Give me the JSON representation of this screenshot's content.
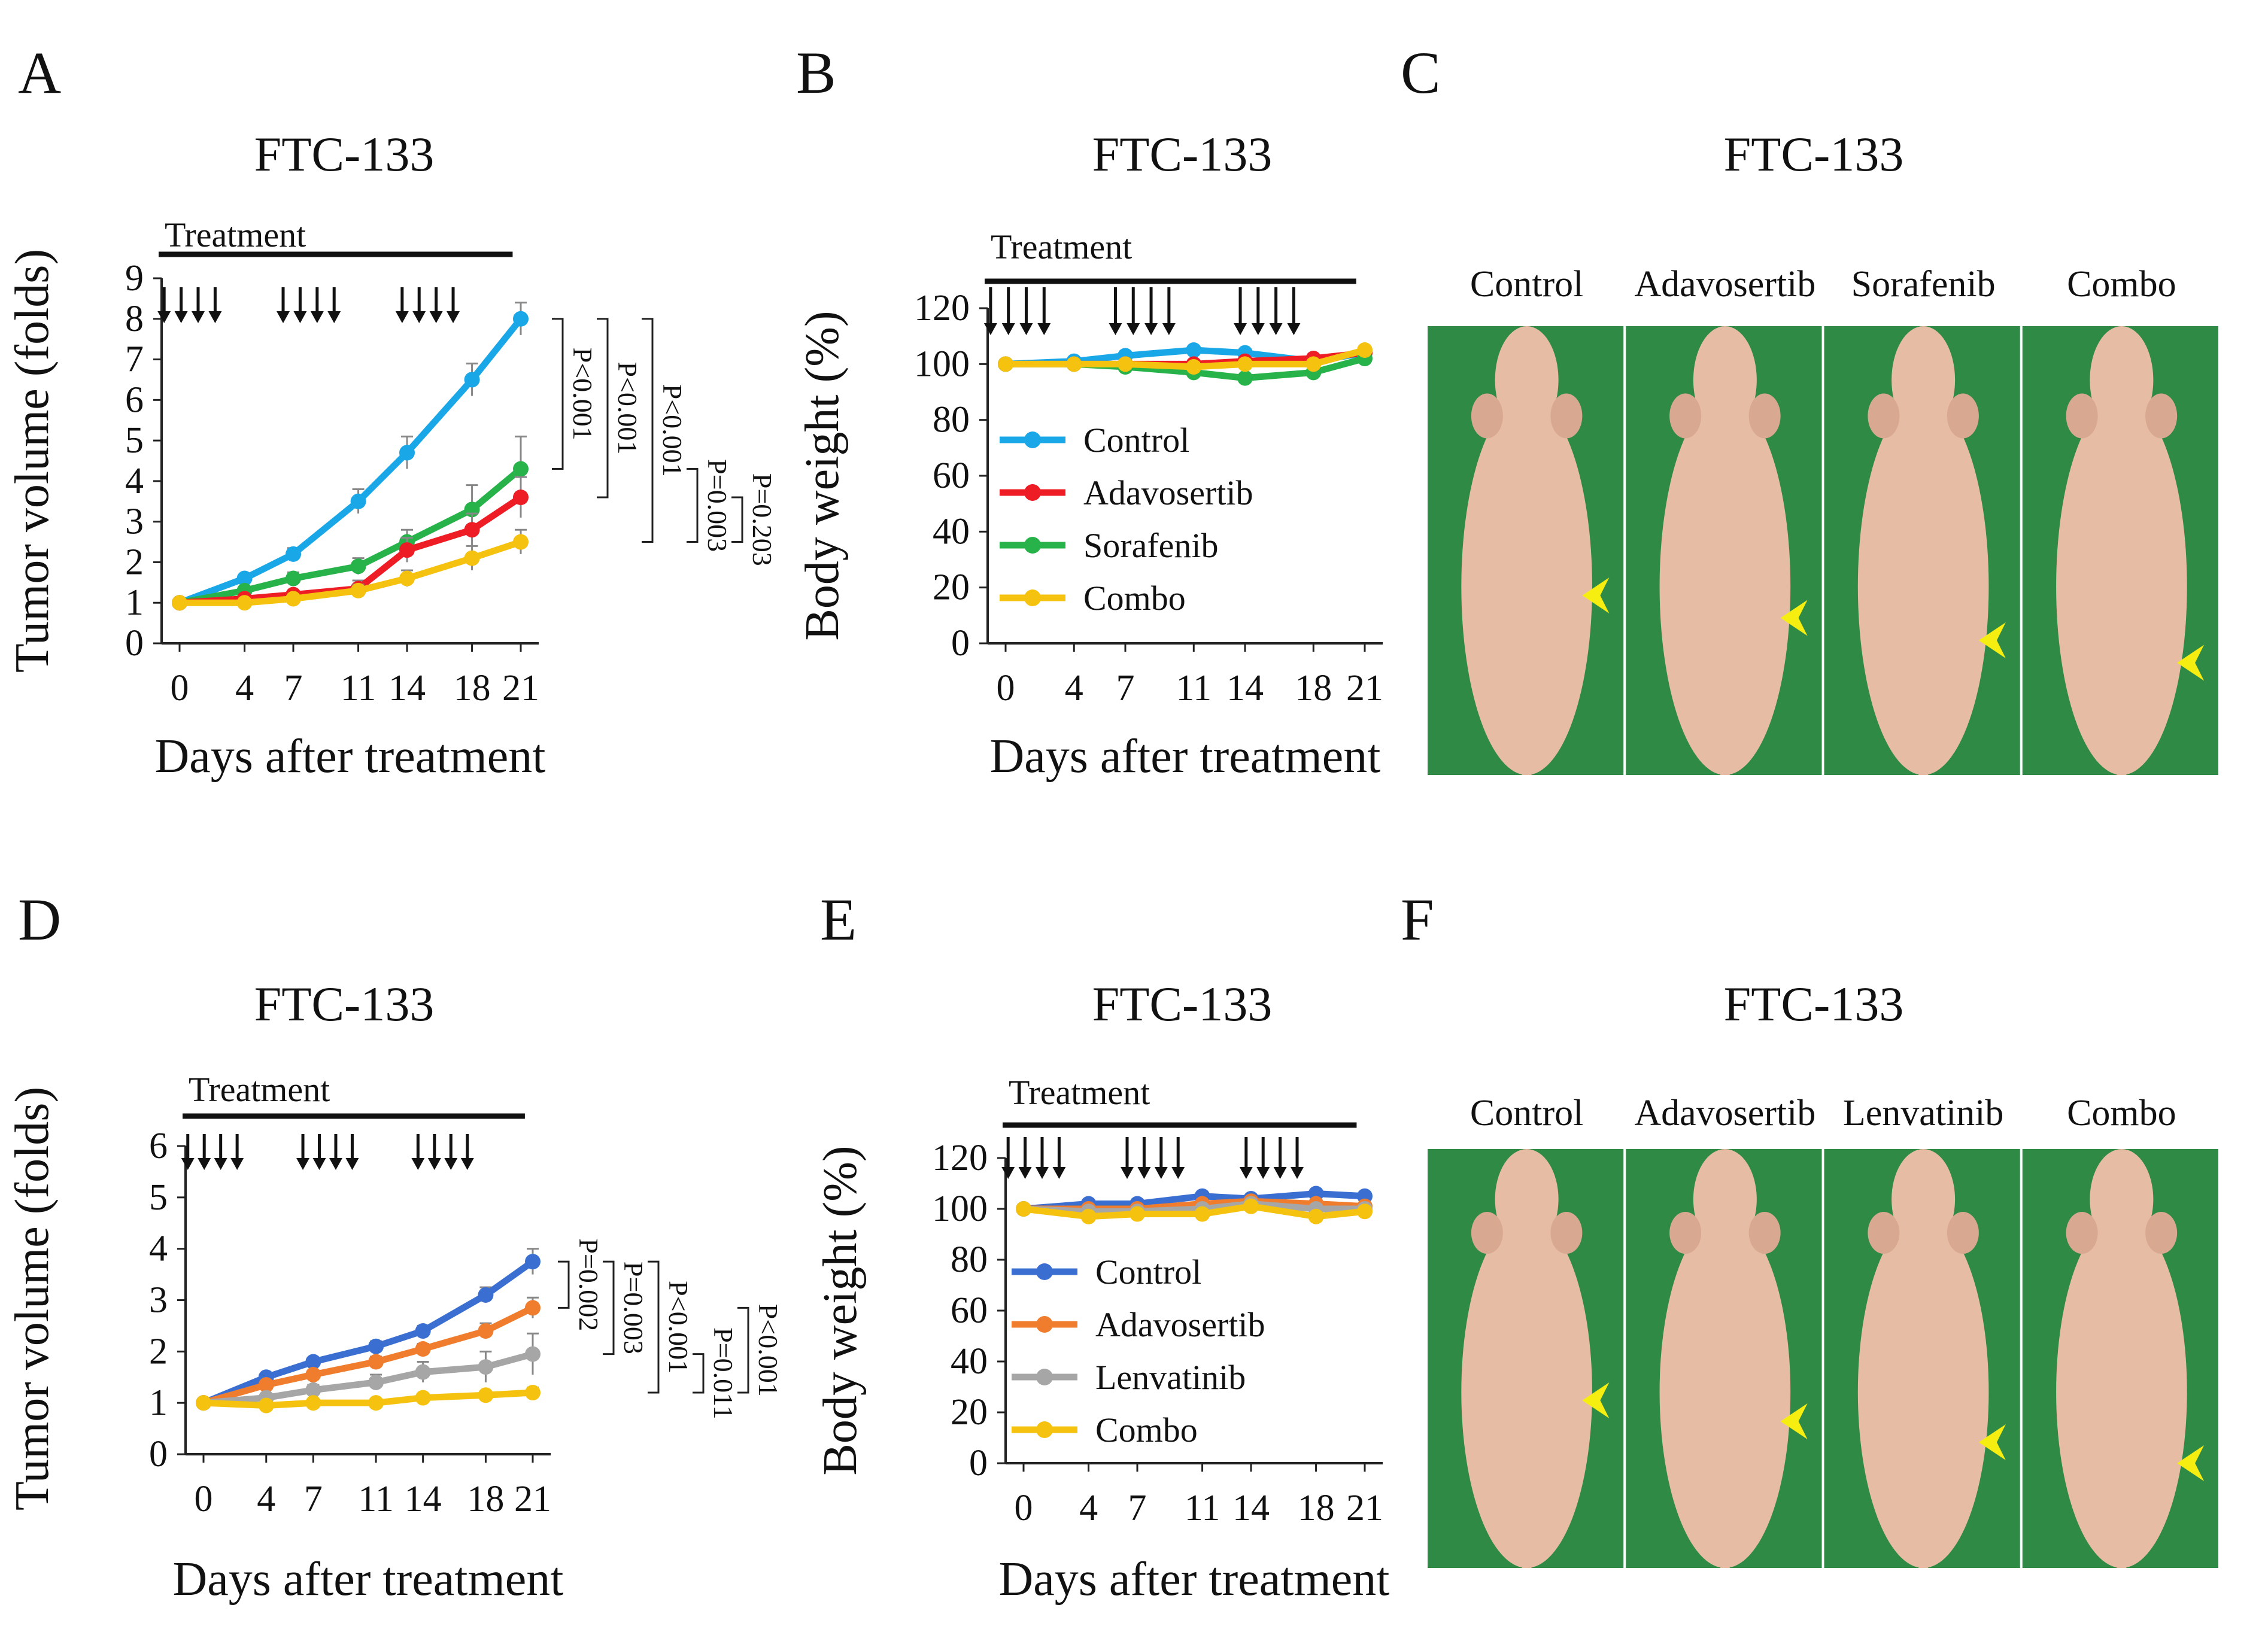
{
  "figure": {
    "panels": {
      "A": {
        "letter": "A",
        "title": "FTC-133"
      },
      "B": {
        "letter": "B",
        "title": "FTC-133"
      },
      "C": {
        "letter": "C",
        "title": "FTC-133"
      },
      "D": {
        "letter": "D",
        "title": "FTC-133"
      },
      "E": {
        "letter": "E",
        "title": "FTC-133"
      },
      "F": {
        "letter": "F",
        "title": "FTC-133"
      }
    },
    "treatment_label": "Treatment",
    "xlabel": "Days after treatment",
    "photo_C": {
      "labels": [
        "Control",
        "Adavosertib",
        "Sorafenib",
        "Combo"
      ]
    },
    "photo_F": {
      "labels": [
        "Control",
        "Adavosertib",
        "Lenvatinib",
        "Combo"
      ]
    },
    "colors": {
      "photo_bg": "#2f8a45",
      "skin": "#e6bca4",
      "arrowhead": "#f5ee10"
    }
  },
  "chart_data": [
    {
      "id": "A",
      "type": "line",
      "title": "FTC-133",
      "xlabel": "Days after treatment",
      "ylabel": "Tumor volume (folds)",
      "x": [
        0,
        4,
        7,
        11,
        14,
        18,
        21
      ],
      "xticks": [
        "0",
        "4",
        "7",
        "11",
        "14",
        "18",
        "21"
      ],
      "ylim": [
        0,
        9
      ],
      "yticks": [
        "0",
        "1",
        "2",
        "3",
        "4",
        "5",
        "6",
        "7",
        "8",
        "9"
      ],
      "treatment_days": [
        [
          0,
          1,
          2,
          3
        ],
        [
          7,
          8,
          9,
          10
        ],
        [
          14,
          15,
          16,
          17
        ]
      ],
      "series": [
        {
          "name": "Control",
          "color": "#1aa7e8",
          "values": [
            1.0,
            1.6,
            2.2,
            3.5,
            4.7,
            6.5,
            8.0
          ],
          "err": [
            0.05,
            0.1,
            0.15,
            0.3,
            0.4,
            0.4,
            0.4
          ]
        },
        {
          "name": "Sorafenib",
          "color": "#27b24a",
          "values": [
            1.0,
            1.3,
            1.6,
            1.9,
            2.5,
            3.3,
            4.3
          ],
          "err": [
            0.05,
            0.1,
            0.15,
            0.2,
            0.3,
            0.6,
            0.8
          ]
        },
        {
          "name": "Adavosertib",
          "color": "#ee1c24",
          "values": [
            1.0,
            1.1,
            1.2,
            1.35,
            2.3,
            2.8,
            3.6
          ],
          "err": [
            0.05,
            0.1,
            0.1,
            0.2,
            0.3,
            0.4,
            0.5
          ]
        },
        {
          "name": "Combo",
          "color": "#f5c20f",
          "values": [
            1.0,
            1.0,
            1.1,
            1.3,
            1.6,
            2.1,
            2.5
          ],
          "err": [
            0.05,
            0.1,
            0.1,
            0.15,
            0.2,
            0.3,
            0.3
          ]
        }
      ],
      "pvalues": [
        {
          "label": "P<0.001",
          "from": 8.0,
          "to": 4.3
        },
        {
          "label": "P<0.001",
          "from": 8.0,
          "to": 3.6
        },
        {
          "label": "P<0.001",
          "from": 8.0,
          "to": 2.5
        },
        {
          "label": "P=0.003",
          "from": 4.3,
          "to": 2.5
        },
        {
          "label": "P=0.203",
          "from": 3.6,
          "to": 2.5
        }
      ]
    },
    {
      "id": "B",
      "type": "line",
      "title": "FTC-133",
      "xlabel": "Days after treatment",
      "ylabel": "Body weight (%)",
      "x": [
        0,
        4,
        7,
        11,
        14,
        18,
        21
      ],
      "xticks": [
        "0",
        "4",
        "7",
        "11",
        "14",
        "18",
        "21"
      ],
      "ylim": [
        0,
        120
      ],
      "yticks": [
        "0",
        "20",
        "40",
        "60",
        "80",
        "100",
        "120"
      ],
      "treatment_days": [
        [
          0,
          1,
          2,
          3
        ],
        [
          7,
          8,
          9,
          10
        ],
        [
          14,
          15,
          16,
          17
        ]
      ],
      "legend": "left",
      "series": [
        {
          "name": "Control",
          "color": "#1aa7e8",
          "values": [
            100,
            101,
            103,
            105,
            104,
            101,
            104
          ]
        },
        {
          "name": "Adavosertib",
          "color": "#ee1c24",
          "values": [
            100,
            100,
            100,
            100,
            101,
            102,
            104
          ]
        },
        {
          "name": "Sorafenib",
          "color": "#27b24a",
          "values": [
            100,
            100,
            99,
            97,
            95,
            97,
            102
          ]
        },
        {
          "name": "Combo",
          "color": "#f5c20f",
          "values": [
            100,
            100,
            100,
            99,
            100,
            100,
            105
          ]
        }
      ]
    },
    {
      "id": "D",
      "type": "line",
      "title": "FTC-133",
      "xlabel": "Days after treatment",
      "ylabel": "Tumor volume (folds)",
      "x": [
        0,
        4,
        7,
        11,
        14,
        18,
        21
      ],
      "xticks": [
        "0",
        "4",
        "7",
        "11",
        "14",
        "18",
        "21"
      ],
      "ylim": [
        0,
        6
      ],
      "yticks": [
        "0",
        "1",
        "2",
        "3",
        "4",
        "5",
        "6"
      ],
      "treatment_days": [
        [
          0,
          1,
          2,
          3
        ],
        [
          7,
          8,
          9,
          10
        ],
        [
          14,
          15,
          16,
          17
        ]
      ],
      "series": [
        {
          "name": "Control",
          "color": "#3a6fd1",
          "values": [
            1.0,
            1.5,
            1.8,
            2.1,
            2.4,
            3.1,
            3.75
          ],
          "err": [
            0.05,
            0.05,
            0.08,
            0.1,
            0.1,
            0.15,
            0.25
          ]
        },
        {
          "name": "Adavosertib",
          "color": "#f07d2e",
          "values": [
            1.0,
            1.35,
            1.55,
            1.8,
            2.05,
            2.4,
            2.85
          ],
          "err": [
            0.05,
            0.05,
            0.08,
            0.1,
            0.1,
            0.15,
            0.2
          ]
        },
        {
          "name": "Lenvatinib",
          "color": "#a6a6a6",
          "values": [
            1.0,
            1.1,
            1.25,
            1.4,
            1.6,
            1.7,
            1.95
          ],
          "err": [
            0.05,
            0.05,
            0.1,
            0.15,
            0.2,
            0.3,
            0.4
          ]
        },
        {
          "name": "Combo",
          "color": "#f5c20f",
          "values": [
            1.0,
            0.95,
            1.0,
            1.0,
            1.1,
            1.15,
            1.2
          ],
          "err": [
            0.05,
            0.05,
            0.05,
            0.05,
            0.08,
            0.08,
            0.1
          ]
        }
      ],
      "pvalues": [
        {
          "label": "P=0.002",
          "from": 3.75,
          "to": 2.85
        },
        {
          "label": "P=0.003",
          "from": 3.75,
          "to": 1.95
        },
        {
          "label": "P<0.001",
          "from": 3.75,
          "to": 1.2
        },
        {
          "label": "P=0.011",
          "from": 1.95,
          "to": 1.2
        },
        {
          "label": "P<0.001",
          "from": 2.85,
          "to": 1.2
        }
      ]
    },
    {
      "id": "E",
      "type": "line",
      "title": "FTC-133",
      "xlabel": "Days after treatment",
      "ylabel": "Body weight (%)",
      "x": [
        0,
        4,
        7,
        11,
        14,
        18,
        21
      ],
      "xticks": [
        "0",
        "4",
        "7",
        "11",
        "14",
        "18",
        "21"
      ],
      "ylim": [
        0,
        120
      ],
      "yticks": [
        "0",
        "20",
        "40",
        "60",
        "80",
        "100",
        "120"
      ],
      "treatment_days": [
        [
          0,
          1,
          2,
          3
        ],
        [
          7,
          8,
          9,
          10
        ],
        [
          14,
          15,
          16,
          17
        ]
      ],
      "legend": "left",
      "series": [
        {
          "name": "Control",
          "color": "#3a6fd1",
          "values": [
            100,
            102,
            102,
            105,
            104,
            106,
            105
          ]
        },
        {
          "name": "Adavosertib",
          "color": "#f07d2e",
          "values": [
            100,
            100,
            100,
            102,
            103,
            102,
            101
          ]
        },
        {
          "name": "Lenvatinib",
          "color": "#a6a6a6",
          "values": [
            100,
            99,
            99,
            100,
            102,
            100,
            100
          ]
        },
        {
          "name": "Combo",
          "color": "#f5c20f",
          "values": [
            100,
            97,
            98,
            98,
            101,
            97,
            99
          ]
        }
      ]
    }
  ]
}
